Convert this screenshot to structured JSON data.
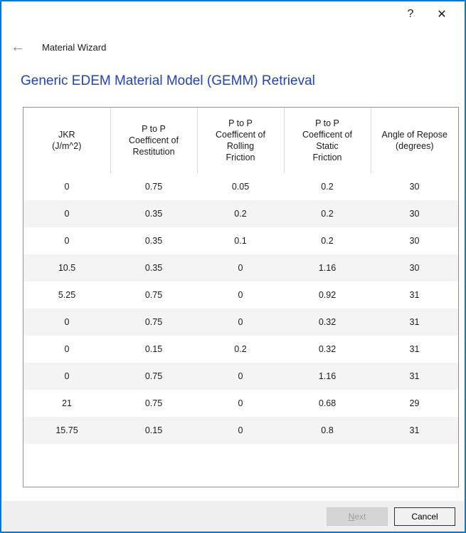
{
  "window": {
    "help_glyph": "?",
    "close_glyph": "✕",
    "accent_color": "#0078d7"
  },
  "nav": {
    "back_glyph": "←",
    "title": "Material Wizard"
  },
  "page": {
    "heading": "Generic EDEM Material Model (GEMM) Retrieval",
    "heading_color": "#2042c6"
  },
  "table": {
    "columns": [
      "JKR\n(J/m^2)",
      "P to P\nCoefficent of\nRestitution",
      "P to P\nCoefficent of\nRolling\nFriction",
      "P to P\nCoefficent of\nStatic\nFriction",
      "Angle of Repose\n(degrees)"
    ],
    "rows": [
      [
        "0",
        "0.75",
        "0.05",
        "0.2",
        "30"
      ],
      [
        "0",
        "0.35",
        "0.2",
        "0.2",
        "30"
      ],
      [
        "0",
        "0.35",
        "0.1",
        "0.2",
        "30"
      ],
      [
        "10.5",
        "0.35",
        "0",
        "1.16",
        "30"
      ],
      [
        "5.25",
        "0.75",
        "0",
        "0.92",
        "31"
      ],
      [
        "0",
        "0.75",
        "0",
        "0.32",
        "31"
      ],
      [
        "0",
        "0.15",
        "0.2",
        "0.32",
        "31"
      ],
      [
        "0",
        "0.75",
        "0",
        "1.16",
        "31"
      ],
      [
        "21",
        "0.75",
        "0",
        "0.68",
        "29"
      ],
      [
        "15.75",
        "0.15",
        "0",
        "0.8",
        "31"
      ]
    ],
    "stripe_color": "#f4f4f4"
  },
  "footer": {
    "next_mnemonic": "N",
    "next_rest": "ext",
    "cancel_label": "Cancel"
  }
}
